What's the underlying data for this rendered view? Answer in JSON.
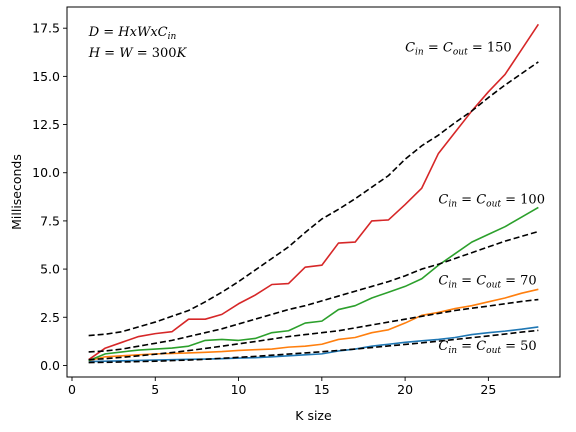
{
  "chart_data": {
    "type": "line",
    "xlabel": "K size",
    "ylabel": "Milliseconds",
    "xlim": [
      -0.3,
      29.3
    ],
    "ylim": [
      -0.6,
      18.6
    ],
    "xticks": [
      0,
      5,
      10,
      15,
      20,
      25
    ],
    "yticks": [
      0.0,
      2.5,
      5.0,
      7.5,
      10.0,
      12.5,
      15.0,
      17.5
    ],
    "grid": false,
    "legend": "none",
    "annotations": [
      {
        "text": "D = HxWxC_in",
        "x": 1.0,
        "y": 17.1
      },
      {
        "text": "H = W = 300K",
        "x": 1.0,
        "y": 16.0
      },
      {
        "text": "C_in = C_out = 150",
        "x": 20.0,
        "y": 16.3
      },
      {
        "text": "C_in = C_out = 100",
        "x": 22.0,
        "y": 8.4
      },
      {
        "text": "C_in = C_out = 70",
        "x": 22.0,
        "y": 4.2
      },
      {
        "text": "C_in = C_out = 50",
        "x": 22.0,
        "y": 0.8
      }
    ],
    "series": [
      {
        "color": "#1f77b4",
        "style": "solid",
        "x": [
          1,
          2,
          3,
          4,
          5,
          6,
          7,
          8,
          9,
          10,
          11,
          12,
          13,
          14,
          15,
          16,
          17,
          18,
          19,
          20,
          21,
          22,
          23,
          24,
          25,
          26,
          27,
          28
        ],
        "y": [
          0.2,
          0.22,
          0.24,
          0.26,
          0.28,
          0.3,
          0.32,
          0.33,
          0.35,
          0.38,
          0.4,
          0.45,
          0.5,
          0.55,
          0.6,
          0.75,
          0.85,
          1.0,
          1.1,
          1.2,
          1.28,
          1.35,
          1.45,
          1.6,
          1.7,
          1.78,
          1.88,
          2.0
        ]
      },
      {
        "color": "#ff7f0e",
        "style": "solid",
        "x": [
          1,
          2,
          3,
          4,
          5,
          6,
          7,
          8,
          9,
          10,
          11,
          12,
          13,
          14,
          15,
          16,
          17,
          18,
          19,
          20,
          21,
          22,
          23,
          24,
          25,
          26,
          27,
          28
        ],
        "y": [
          0.25,
          0.45,
          0.5,
          0.55,
          0.6,
          0.62,
          0.65,
          0.68,
          0.72,
          0.78,
          0.82,
          0.85,
          0.95,
          1.0,
          1.1,
          1.35,
          1.45,
          1.7,
          1.85,
          2.2,
          2.6,
          2.75,
          2.95,
          3.1,
          3.3,
          3.5,
          3.75,
          3.95
        ]
      },
      {
        "color": "#2ca02c",
        "style": "solid",
        "x": [
          1,
          2,
          3,
          4,
          5,
          6,
          7,
          8,
          9,
          10,
          11,
          12,
          13,
          14,
          15,
          16,
          17,
          18,
          19,
          20,
          21,
          22,
          23,
          24,
          25,
          26,
          27,
          28
        ],
        "y": [
          0.25,
          0.6,
          0.7,
          0.8,
          0.85,
          0.9,
          1.0,
          1.3,
          1.35,
          1.3,
          1.4,
          1.7,
          1.8,
          2.2,
          2.3,
          2.9,
          3.1,
          3.5,
          3.8,
          4.1,
          4.5,
          5.2,
          5.8,
          6.4,
          6.8,
          7.2,
          7.7,
          8.2
        ]
      },
      {
        "color": "#d62728",
        "style": "solid",
        "x": [
          1,
          2,
          3,
          4,
          5,
          6,
          7,
          8,
          9,
          10,
          11,
          12,
          13,
          14,
          15,
          16,
          17,
          18,
          19,
          20,
          21,
          22,
          23,
          24,
          25,
          26,
          27,
          28
        ],
        "y": [
          0.3,
          0.9,
          1.2,
          1.5,
          1.65,
          1.75,
          2.4,
          2.4,
          2.65,
          3.2,
          3.65,
          4.2,
          4.25,
          5.1,
          5.2,
          6.35,
          6.4,
          7.5,
          7.55,
          8.35,
          9.2,
          11.0,
          12.1,
          13.2,
          14.2,
          15.1,
          16.4,
          17.7
        ]
      },
      {
        "color": "#000000",
        "style": "dashed",
        "x": [
          1,
          2,
          3,
          4,
          5,
          6,
          7,
          8,
          9,
          10,
          11,
          12,
          13,
          14,
          15,
          16,
          17,
          18,
          19,
          20,
          21,
          22,
          23,
          24,
          25,
          26,
          27,
          28
        ],
        "y": [
          0.15,
          0.16,
          0.18,
          0.2,
          0.22,
          0.25,
          0.28,
          0.32,
          0.37,
          0.42,
          0.47,
          0.53,
          0.59,
          0.65,
          0.71,
          0.78,
          0.85,
          0.93,
          1.01,
          1.09,
          1.17,
          1.26,
          1.35,
          1.44,
          1.53,
          1.63,
          1.73,
          1.82
        ]
      },
      {
        "color": "#000000",
        "style": "dashed",
        "x": [
          1,
          2,
          3,
          4,
          5,
          6,
          7,
          8,
          9,
          10,
          11,
          12,
          13,
          14,
          15,
          16,
          17,
          18,
          19,
          20,
          21,
          22,
          23,
          24,
          25,
          26,
          27,
          28
        ],
        "y": [
          0.3,
          0.35,
          0.42,
          0.5,
          0.58,
          0.67,
          0.77,
          0.88,
          1.0,
          1.12,
          1.24,
          1.37,
          1.5,
          1.6,
          1.7,
          1.8,
          1.95,
          2.1,
          2.25,
          2.4,
          2.55,
          2.7,
          2.85,
          2.97,
          3.08,
          3.2,
          3.32,
          3.42
        ]
      },
      {
        "color": "#000000",
        "style": "dashed",
        "x": [
          1,
          2,
          3,
          4,
          5,
          6,
          7,
          8,
          9,
          10,
          11,
          12,
          13,
          14,
          15,
          16,
          17,
          18,
          19,
          20,
          21,
          22,
          23,
          24,
          25,
          26,
          27,
          28
        ],
        "y": [
          0.7,
          0.75,
          0.85,
          1.0,
          1.15,
          1.3,
          1.5,
          1.7,
          1.9,
          2.15,
          2.4,
          2.65,
          2.9,
          3.1,
          3.35,
          3.6,
          3.85,
          4.1,
          4.35,
          4.65,
          5.0,
          5.25,
          5.55,
          5.85,
          6.15,
          6.45,
          6.7,
          6.95
        ]
      },
      {
        "color": "#000000",
        "style": "dashed",
        "x": [
          1,
          2,
          3,
          4,
          5,
          6,
          7,
          8,
          9,
          10,
          11,
          12,
          13,
          14,
          15,
          16,
          17,
          18,
          19,
          20,
          21,
          22,
          23,
          24,
          25,
          26,
          27,
          28
        ],
        "y": [
          1.55,
          1.62,
          1.75,
          2.0,
          2.25,
          2.55,
          2.85,
          3.3,
          3.8,
          4.35,
          4.95,
          5.55,
          6.15,
          6.9,
          7.6,
          8.1,
          8.65,
          9.25,
          9.85,
          10.7,
          11.4,
          11.95,
          12.6,
          13.2,
          13.9,
          14.55,
          15.15,
          15.75
        ]
      }
    ]
  }
}
